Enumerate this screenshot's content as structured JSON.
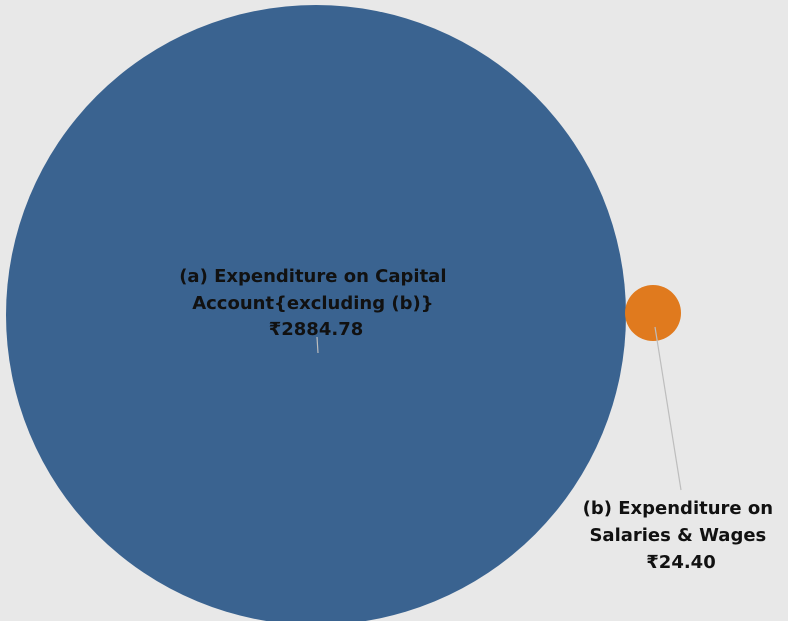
{
  "chart_data": {
    "type": "bubble",
    "series": [
      {
        "category": "(a) Expenditure on Capital Account{excluding (b)}",
        "label_lines": [
          "(a) Expenditure on Capital",
          "Account{excluding (b)}"
        ],
        "value": 2884.78,
        "value_label": "₹2884.78",
        "color": "#3a6390"
      },
      {
        "category": "(b) Expenditure on Salaries & Wages",
        "label_lines": [
          "(b) Expenditure on",
          "Salaries & Wages"
        ],
        "value": 24.4,
        "value_label": "₹24.40",
        "color": "#e07a1e"
      }
    ],
    "background_color": "#e8e8e8",
    "leader_line_color": "#bdbdbd",
    "legend": "none"
  }
}
